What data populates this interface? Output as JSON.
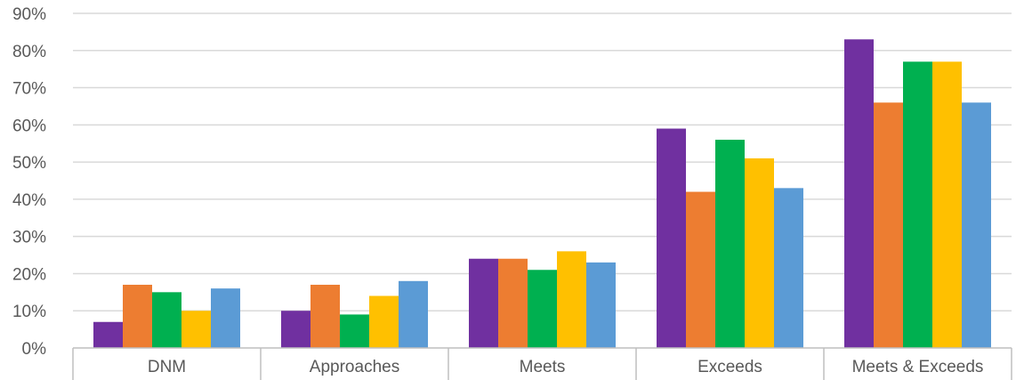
{
  "chart_data": {
    "type": "bar",
    "categories": [
      "DNM",
      "Approaches",
      "Meets",
      "Exceeds",
      "Meets & Exceeds"
    ],
    "series": [
      {
        "values": [
          7,
          10,
          24,
          59,
          83
        ],
        "color": "#7030A0"
      },
      {
        "values": [
          17,
          17,
          24,
          42,
          66
        ],
        "color": "#ED7D31"
      },
      {
        "values": [
          15,
          9,
          21,
          56,
          77
        ],
        "color": "#00B050"
      },
      {
        "values": [
          10,
          14,
          26,
          51,
          77
        ],
        "color": "#FFC000"
      },
      {
        "values": [
          16,
          18,
          23,
          43,
          66
        ],
        "color": "#5B9BD5"
      }
    ],
    "ylim": [
      0,
      90
    ],
    "yticks": [
      "0%",
      "10%",
      "20%",
      "30%",
      "40%",
      "50%",
      "60%",
      "70%",
      "80%",
      "90%"
    ],
    "grid": true,
    "legend": "none"
  }
}
